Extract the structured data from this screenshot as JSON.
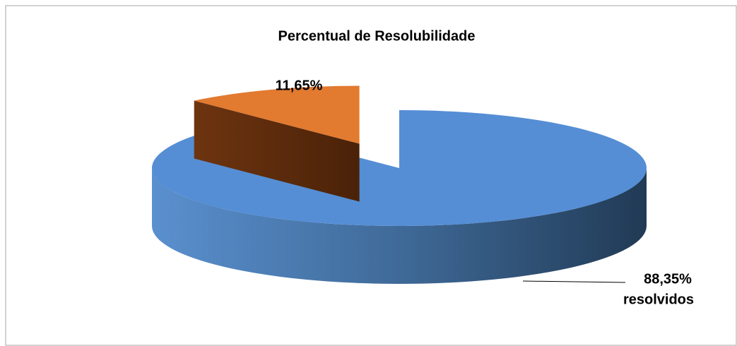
{
  "chart_data": {
    "type": "pie",
    "title": "Percentual de Resolubilidade",
    "categories": [
      "resolvidos",
      null
    ],
    "values": [
      88.35,
      11.65
    ],
    "value_labels": [
      "88,35%",
      "11,65%"
    ],
    "colors": [
      "#558ed5",
      "#e27a30"
    ]
  }
}
